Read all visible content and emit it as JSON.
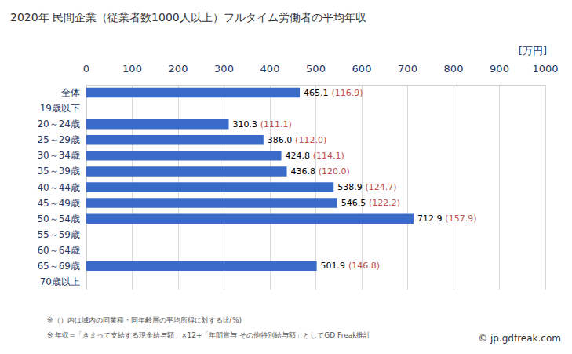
{
  "chart_data": {
    "type": "bar",
    "title": "2020年 民間企業（従業者数1000人以上）フルタイム労働者の平均年収",
    "unit_label": "[万円]",
    "notes": [
      "※（）内は域内の同業種・同年齢層の平均所得に対する比(%)",
      "※ 年収=「きまって支給する現金給与額」×12+「年間賞与 その他特別給与額」としてGD Freak推計"
    ],
    "source": "© jp.gdfreak.com",
    "categories": [
      "全体",
      "19歳以下",
      "20～24歳",
      "25～29歳",
      "30～34歳",
      "35～39歳",
      "40～44歳",
      "45～49歳",
      "50～54歳",
      "55～59歳",
      "60～64歳",
      "65～69歳",
      "70歳以上"
    ],
    "values": [
      465.1,
      null,
      310.3,
      386.0,
      424.8,
      436.8,
      538.9,
      546.5,
      712.9,
      null,
      null,
      501.9,
      null
    ],
    "value_labels": [
      "465.1",
      null,
      "310.3",
      "386.0",
      "424.8",
      "436.8",
      "538.9",
      "546.5",
      "712.9",
      null,
      null,
      "501.9",
      null
    ],
    "ratios": [
      116.9,
      null,
      111.1,
      112.0,
      114.1,
      120.0,
      124.7,
      122.2,
      157.9,
      null,
      null,
      146.8,
      null
    ],
    "ratio_labels": [
      "(116.9)",
      null,
      "(111.1)",
      "(112.0)",
      "(114.1)",
      "(120.0)",
      "(124.7)",
      "(122.2)",
      "(157.9)",
      null,
      null,
      "(146.8)",
      null
    ],
    "color": "#3a6bc8",
    "xlim": [
      0,
      1000
    ],
    "xticks": [
      0,
      100,
      200,
      300,
      400,
      500,
      600,
      700,
      800,
      900,
      1000
    ],
    "grid": true,
    "orientation": "horizontal",
    "data_labels": true
  }
}
